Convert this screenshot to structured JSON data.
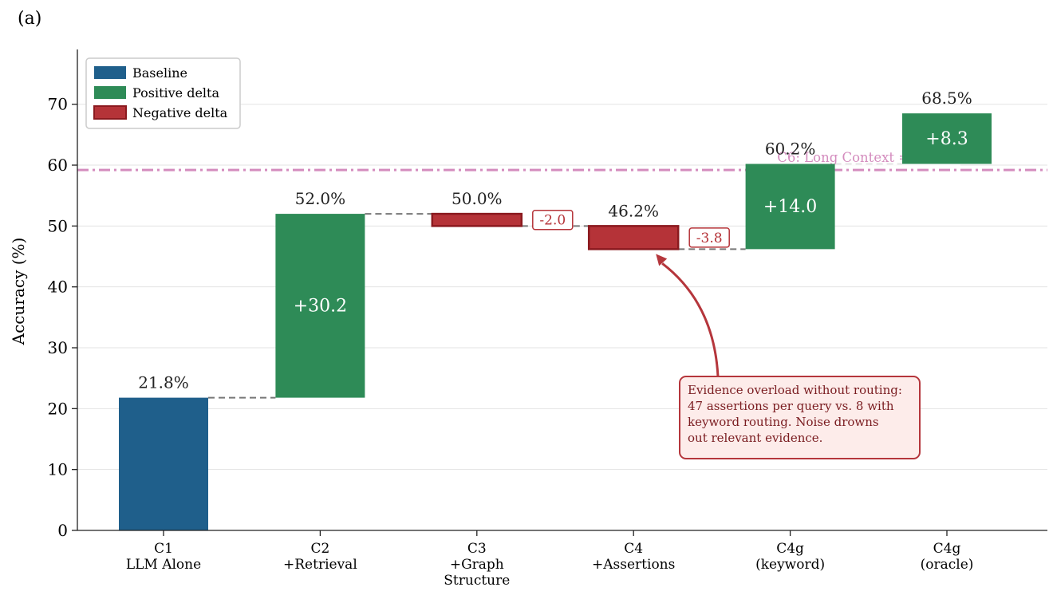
{
  "panel_label": "(a)",
  "chart_data": {
    "type": "bar",
    "subtype": "waterfall",
    "ylabel": "Accuracy (%)",
    "ylim": [
      0,
      79
    ],
    "yticks": [
      0,
      10,
      20,
      30,
      40,
      50,
      60,
      70
    ],
    "grid": "horizontal",
    "legend_position": "top-left",
    "legend": [
      {
        "label": "Baseline",
        "color": "#1f5f8b"
      },
      {
        "label": "Positive delta",
        "color": "#2e8b57"
      },
      {
        "label": "Negative delta",
        "color": "#b53338"
      }
    ],
    "categories": [
      {
        "top": "C1",
        "bottom": "LLM Alone"
      },
      {
        "top": "C2",
        "bottom": "+Retrieval"
      },
      {
        "top": "C3",
        "bottom": "+Graph",
        "bottom2": "Structure"
      },
      {
        "top": "C4",
        "bottom": "+Assertions"
      },
      {
        "top": "C4g",
        "bottom": "(keyword)"
      },
      {
        "top": "C4g",
        "bottom": "(oracle)"
      }
    ],
    "bars": [
      {
        "kind": "baseline",
        "start": 0,
        "end": 21.8,
        "total_label": "21.8%",
        "delta_label": ""
      },
      {
        "kind": "positive",
        "start": 21.8,
        "end": 52.0,
        "total_label": "52.0%",
        "delta_label": "+30.2"
      },
      {
        "kind": "negative",
        "start": 52.0,
        "end": 50.0,
        "total_label": "50.0%",
        "delta_label": "-2.0"
      },
      {
        "kind": "negative",
        "start": 50.0,
        "end": 46.2,
        "total_label": "46.2%",
        "delta_label": "-3.8"
      },
      {
        "kind": "positive",
        "start": 46.2,
        "end": 60.2,
        "total_label": "60.2%",
        "delta_label": "+14.0"
      },
      {
        "kind": "positive",
        "start": 60.2,
        "end": 68.5,
        "total_label": "68.5%",
        "delta_label": "+8.3"
      }
    ],
    "reference_line": {
      "value": 59.2,
      "label": "C6: Long Context = 59.2%",
      "color": "#d48cbe"
    },
    "annotation": {
      "lines": [
        "Evidence overload without routing:",
        "47 assertions per query vs. 8 with",
        "keyword routing. Noise drowns",
        "out relevant evidence."
      ],
      "target_category": 3,
      "target_value": 46.2
    },
    "colors": {
      "baseline": "#1f5f8b",
      "positive": "#2e8b57",
      "negative": "#b53338",
      "negative_edge": "#8b1a1f",
      "annotation_edge": "#b5363c",
      "annotation_fill": "#fdecea"
    }
  }
}
